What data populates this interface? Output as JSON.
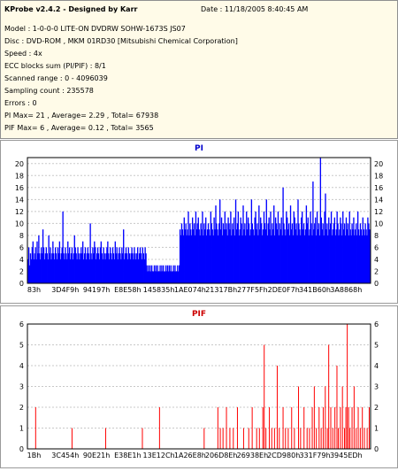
{
  "info": {
    "title": "KProbe v2.4.2 - Designed by Karr",
    "date": "Date : 11/18/2005 8:40:45 AM",
    "lines": [
      "Model : 1-0-0-0 LITE-ON DVDRW SOHW-1673S JS07",
      "Disc : DVD-ROM , MKM 01RD30  [Mitsubishi Chemical Corporation]",
      "Speed : 4x",
      "ECC blocks sum (PI/PIF) : 8/1",
      "Scanned range : 0 - 4096039",
      "Sampling count : 235578",
      "Errors : 0",
      "PI Max= 21 , Average= 2.29 , Total= 67938",
      "PIF Max= 6 , Average= 0.12 , Total= 3565"
    ]
  },
  "colors": {
    "pi": "#0000ff",
    "pif": "#ff0000",
    "pif_title": "#cc0000",
    "pi_title": "#0000cc"
  },
  "chart_data": [
    {
      "type": "bar",
      "title": "PI",
      "ylim": [
        0,
        21
      ],
      "yticks": [
        0,
        2,
        4,
        6,
        8,
        10,
        12,
        14,
        16,
        18,
        20
      ],
      "grid": true,
      "x_tick_labels": [
        "83h",
        "3D4F9h",
        "94197h",
        "E8E58h",
        "145835h",
        "1AE074h",
        "21317Bh",
        "277F5Fh",
        "2DE0F7h",
        "341B60h",
        "3A8868h"
      ],
      "series": [
        {
          "values": [
            4,
            6,
            3,
            5,
            4,
            6,
            7,
            4,
            5,
            6,
            4,
            7,
            5,
            8,
            5,
            4,
            6,
            5,
            9,
            6,
            4,
            5,
            6,
            5,
            4,
            8,
            5,
            6,
            4,
            5,
            7,
            5,
            4,
            6,
            5,
            4,
            6,
            5,
            7,
            4,
            5,
            6,
            12,
            5,
            4,
            6,
            5,
            4,
            7,
            5,
            6,
            4,
            5,
            6,
            4,
            5,
            8,
            6,
            5,
            4,
            6,
            5,
            4,
            5,
            6,
            5,
            7,
            4,
            5,
            6,
            4,
            5,
            6,
            5,
            4,
            10,
            5,
            4,
            6,
            5,
            7,
            6,
            4,
            5,
            6,
            5,
            4,
            6,
            7,
            5,
            4,
            6,
            5,
            4,
            5,
            6,
            7,
            5,
            4,
            6,
            5,
            4,
            6,
            5,
            4,
            7,
            5,
            6,
            4,
            5,
            6,
            5,
            4,
            6,
            5,
            9,
            4,
            5,
            6,
            5,
            4,
            6,
            5,
            4,
            5,
            6,
            5,
            4,
            6,
            5,
            4,
            5,
            6,
            4,
            5,
            6,
            5,
            4,
            6,
            5,
            4,
            6,
            5,
            3,
            2,
            3,
            2,
            3,
            2,
            3,
            2,
            2,
            3,
            2,
            3,
            2,
            3,
            2,
            2,
            3,
            2,
            3,
            2,
            3,
            2,
            2,
            3,
            2,
            3,
            2,
            3,
            2,
            3,
            2,
            2,
            3,
            2,
            3,
            2,
            2,
            3,
            2,
            3,
            9,
            8,
            10,
            9,
            8,
            11,
            9,
            10,
            8,
            9,
            12,
            8,
            10,
            9,
            8,
            11,
            9,
            10,
            8,
            12,
            9,
            10,
            11,
            9,
            8,
            10,
            9,
            12,
            8,
            10,
            9,
            11,
            8,
            9,
            10,
            9,
            8,
            12,
            10,
            9,
            8,
            11,
            9,
            13,
            10,
            9,
            8,
            10,
            14,
            9,
            11,
            8,
            10,
            9,
            12,
            9,
            10,
            8,
            11,
            10,
            9,
            12,
            8,
            10,
            9,
            11,
            8,
            14,
            9,
            10,
            12,
            8,
            9,
            11,
            10,
            8,
            13,
            9,
            10,
            8,
            12,
            9,
            11,
            10,
            8,
            9,
            14,
            10,
            9,
            8,
            11,
            12,
            9,
            10,
            8,
            13,
            9,
            11,
            10,
            8,
            9,
            12,
            10,
            9,
            14,
            8,
            10,
            11,
            9,
            12,
            8,
            10,
            9,
            13,
            8,
            11,
            10,
            9,
            12,
            8,
            10,
            9,
            11,
            8,
            16,
            10,
            9,
            8,
            12,
            11,
            9,
            10,
            8,
            13,
            9,
            10,
            8,
            12,
            11,
            9,
            10,
            8,
            14,
            10,
            9,
            8,
            11,
            12,
            9,
            10,
            8,
            9,
            13,
            10,
            11,
            8,
            9,
            12,
            10,
            8,
            17,
            9,
            10,
            11,
            8,
            12,
            9,
            10,
            8,
            21,
            11,
            9,
            10,
            8,
            12,
            15,
            9,
            10,
            8,
            11,
            9,
            10,
            12,
            8,
            9,
            10,
            11,
            8,
            9,
            12,
            10,
            8,
            9,
            11,
            10,
            8,
            12,
            9,
            10,
            8,
            11,
            9,
            10,
            8,
            12,
            9,
            8,
            10,
            9,
            11,
            8,
            9,
            10,
            8,
            12,
            9,
            8,
            10,
            9,
            8,
            11,
            9,
            8,
            10,
            9,
            8,
            11,
            10,
            9,
            8
          ]
        }
      ]
    },
    {
      "type": "bar",
      "title": "PIF",
      "ylim": [
        0,
        6
      ],
      "yticks": [
        0,
        1,
        2,
        3,
        4,
        5,
        6
      ],
      "grid": true,
      "x_tick_labels": [
        "1Bh",
        "3C454h",
        "90E21h",
        "E38E1h",
        "13E12Ch",
        "1A26E8h",
        "206D8Eh",
        "26938Eh",
        "2CD980h",
        "331F79h",
        "3945EDh"
      ],
      "series": [
        {
          "points": [
            [
              0.024,
              2
            ],
            [
              0.13,
              1
            ],
            [
              0.228,
              1
            ],
            [
              0.335,
              1
            ],
            [
              0.385,
              2
            ],
            [
              0.515,
              1
            ],
            [
              0.555,
              2
            ],
            [
              0.562,
              1
            ],
            [
              0.57,
              1
            ],
            [
              0.58,
              2
            ],
            [
              0.59,
              1
            ],
            [
              0.6,
              1
            ],
            [
              0.612,
              2
            ],
            [
              0.63,
              1
            ],
            [
              0.645,
              1
            ],
            [
              0.655,
              2
            ],
            [
              0.668,
              1
            ],
            [
              0.676,
              1
            ],
            [
              0.686,
              2
            ],
            [
              0.69,
              5
            ],
            [
              0.695,
              1
            ],
            [
              0.705,
              2
            ],
            [
              0.712,
              1
            ],
            [
              0.72,
              1
            ],
            [
              0.728,
              4
            ],
            [
              0.734,
              1
            ],
            [
              0.745,
              2
            ],
            [
              0.752,
              1
            ],
            [
              0.76,
              1
            ],
            [
              0.77,
              2
            ],
            [
              0.778,
              1
            ],
            [
              0.79,
              3
            ],
            [
              0.796,
              1
            ],
            [
              0.806,
              2
            ],
            [
              0.815,
              1
            ],
            [
              0.822,
              1
            ],
            [
              0.83,
              2
            ],
            [
              0.836,
              3
            ],
            [
              0.842,
              1
            ],
            [
              0.85,
              2
            ],
            [
              0.856,
              1
            ],
            [
              0.862,
              2
            ],
            [
              0.868,
              3
            ],
            [
              0.874,
              1
            ],
            [
              0.878,
              5
            ],
            [
              0.884,
              2
            ],
            [
              0.89,
              1
            ],
            [
              0.896,
              2
            ],
            [
              0.902,
              4
            ],
            [
              0.906,
              1
            ],
            [
              0.912,
              2
            ],
            [
              0.918,
              3
            ],
            [
              0.924,
              1
            ],
            [
              0.928,
              2
            ],
            [
              0.932,
              6
            ],
            [
              0.936,
              2
            ],
            [
              0.94,
              1
            ],
            [
              0.946,
              2
            ],
            [
              0.952,
              3
            ],
            [
              0.958,
              1
            ],
            [
              0.964,
              2
            ],
            [
              0.97,
              1
            ],
            [
              0.976,
              2
            ],
            [
              0.982,
              1
            ],
            [
              0.99,
              1
            ],
            [
              0.996,
              2
            ]
          ]
        }
      ]
    }
  ]
}
